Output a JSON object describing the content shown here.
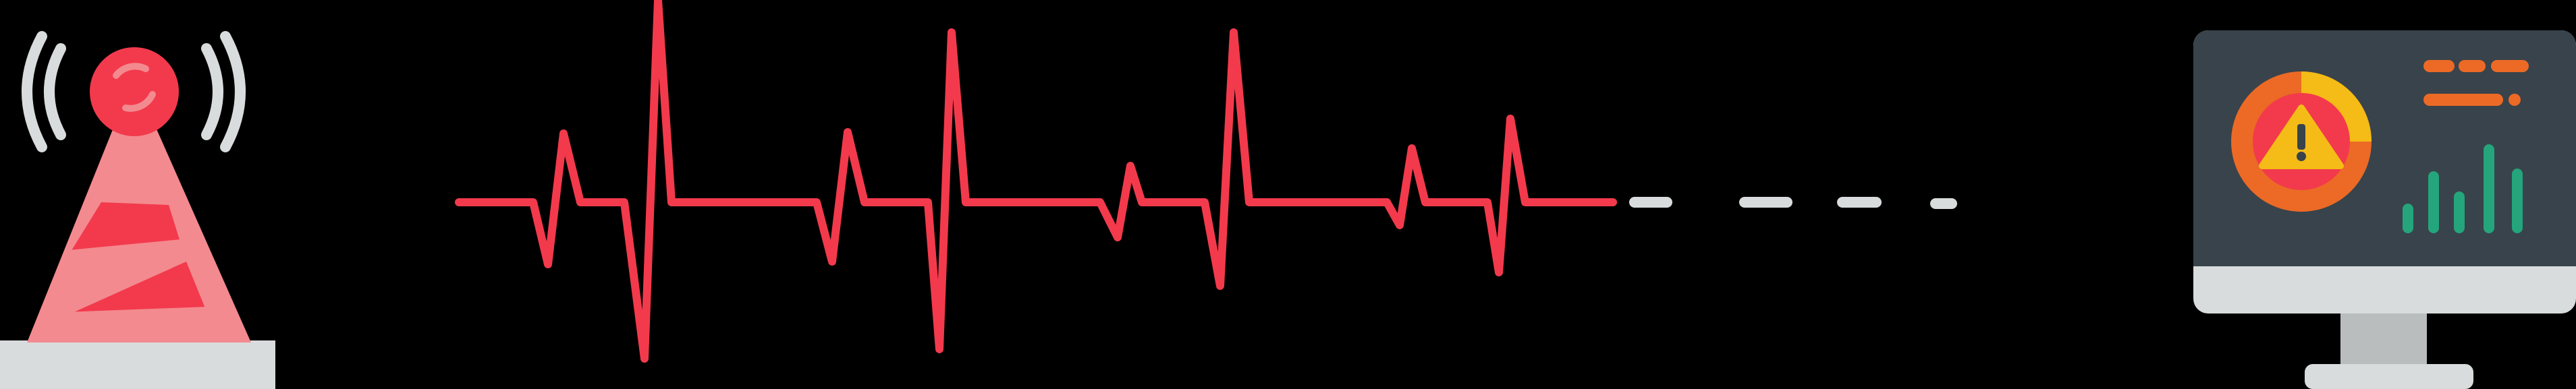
{
  "scene": {
    "background": "#000000",
    "colors": {
      "signal_red": "#f23a4c",
      "light_red": "#f38a8f",
      "grey_light": "#d9dcdc",
      "grey_mid": "#b9bdbd",
      "screen_dark": "#39434b",
      "alert_orange": "#ec6a25",
      "alert_yellow": "#f5bb16",
      "chart_green": "#24a57b"
    },
    "icons": {
      "left": "radio-tower-icon",
      "right": "monitor-alert-icon",
      "center": "heartbeat-signal-line",
      "warning": "warning-triangle-icon"
    }
  }
}
